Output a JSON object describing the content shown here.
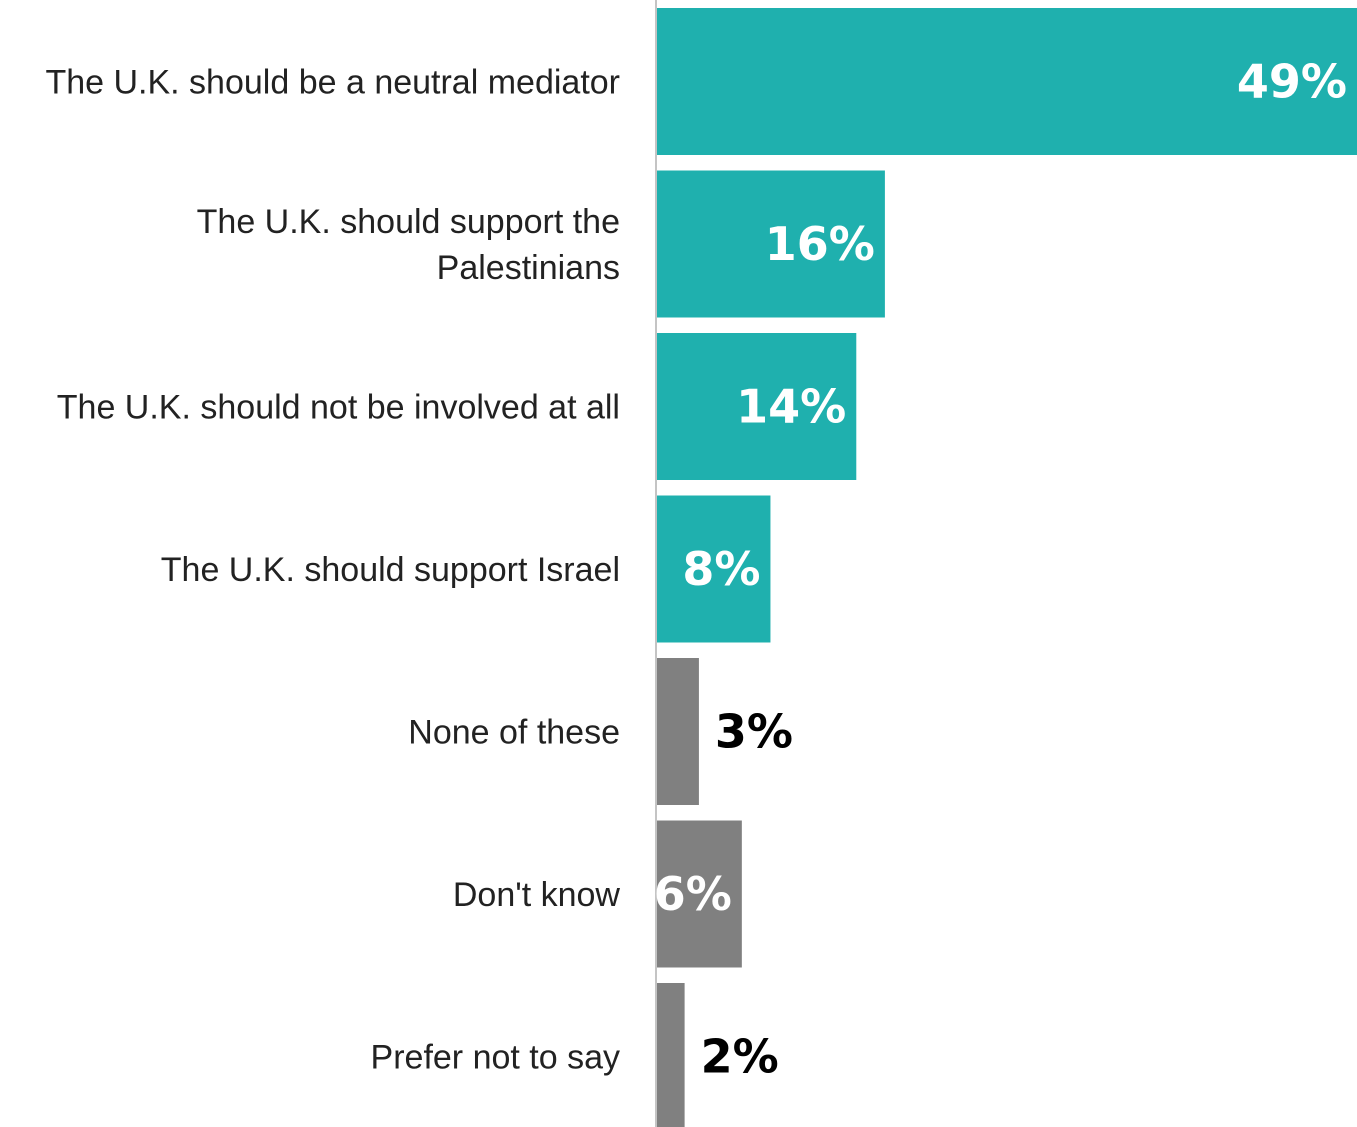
{
  "chart_data": {
    "type": "bar",
    "orientation": "horizontal",
    "categories": [
      "The U.K. should be a neutral mediator",
      "The U.K. should support the Palestinians",
      "The U.K. should not be involved at all",
      "The U.K. should support Israel",
      "None of these",
      "Don't know",
      "Prefer not to say"
    ],
    "values": [
      49,
      16,
      14,
      8,
      3,
      6,
      2
    ],
    "value_labels": [
      "49%",
      "16%",
      "14%",
      "8%",
      "3%",
      "6%",
      "2%"
    ],
    "xlim": [
      0,
      49
    ],
    "grid": false,
    "legend": "none",
    "colors": {
      "substantive": "#1fb0ae",
      "other": "#808080",
      "label_inside": "#ffffff",
      "label_outside": "#000000"
    },
    "bar_color_groups": [
      "substantive",
      "substantive",
      "substantive",
      "substantive",
      "other",
      "other",
      "other"
    ]
  }
}
